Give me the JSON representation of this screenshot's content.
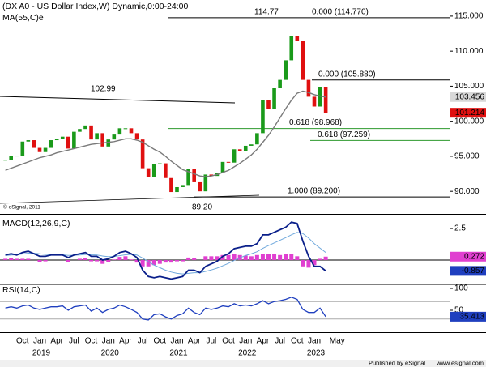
{
  "chart_data": [
    {
      "type": "candlestick",
      "title": "(DX A0 - US Dollar Index,W) Dynamic,0:00-24:00",
      "credit": "© eSignal, 2011",
      "x": [
        "2018-07",
        "2018-08",
        "2018-09",
        "2018-10",
        "2018-11",
        "2018-12",
        "2019-01",
        "2019-02",
        "2019-03",
        "2019-04",
        "2019-05",
        "2019-06",
        "2019-07",
        "2019-08",
        "2019-09",
        "2019-10",
        "2019-11",
        "2019-12",
        "2020-01",
        "2020-02",
        "2020-03",
        "2020-04",
        "2020-05",
        "2020-06",
        "2020-07",
        "2020-08",
        "2020-09",
        "2020-10",
        "2020-11",
        "2020-12",
        "2021-01",
        "2021-02",
        "2021-03",
        "2021-04",
        "2021-05",
        "2021-06",
        "2021-07",
        "2021-08",
        "2021-09",
        "2021-10",
        "2021-11",
        "2021-12",
        "2022-01",
        "2022-02",
        "2022-03",
        "2022-04",
        "2022-05",
        "2022-06",
        "2022-07",
        "2022-08",
        "2022-09",
        "2022-10",
        "2022-11",
        "2022-12",
        "2023-01",
        "2023-02",
        "2023-03"
      ],
      "values": [
        94.5,
        95.1,
        95.1,
        97.1,
        97.3,
        96.2,
        95.6,
        96.2,
        97.3,
        97.5,
        97.8,
        96.1,
        98.5,
        98.9,
        99.4,
        97.4,
        98.3,
        96.4,
        97.4,
        98.1,
        99.0,
        99.0,
        98.3,
        97.4,
        93.3,
        92.1,
        93.9,
        94.0,
        91.9,
        89.9,
        90.6,
        90.9,
        93.2,
        91.3,
        90.0,
        92.4,
        92.2,
        92.6,
        94.2,
        94.1,
        96.0,
        95.7,
        96.5,
        96.7,
        98.3,
        103.0,
        101.8,
        104.7,
        105.9,
        108.7,
        112.1,
        111.5,
        105.9,
        103.5,
        102.1,
        104.9,
        101.214
      ],
      "up_color": "#1a9a1a",
      "down_color": "#e01010",
      "last_color": "#e01010",
      "overlays": [
        {
          "name": "MA(55,C)e",
          "color": "#7a7a7a",
          "values": [
            93.0,
            93.3,
            93.6,
            93.9,
            94.2,
            94.5,
            94.8,
            95.0,
            95.2,
            95.5,
            95.7,
            95.9,
            96.1,
            96.3,
            96.5,
            96.7,
            96.8,
            96.9,
            97.0,
            97.1,
            97.3,
            97.5,
            97.5,
            97.3,
            97.0,
            96.5,
            96.0,
            95.6,
            95.0,
            94.3,
            93.7,
            93.1,
            92.8,
            92.5,
            92.2,
            92.1,
            92.2,
            92.4,
            92.7,
            93.0,
            93.5,
            94.0,
            94.6,
            95.2,
            96.0,
            97.0,
            98.0,
            99.2,
            100.5,
            101.8,
            103.0,
            104.0,
            104.3,
            104.1,
            103.8,
            103.6,
            103.456
          ]
        }
      ],
      "ylim": [
        86.9,
        117.3
      ],
      "yticks": [
        {
          "value": 90,
          "label": "90.000"
        },
        {
          "value": 95,
          "label": "95.000"
        },
        {
          "value": 100,
          "label": "100.000"
        },
        {
          "value": 105,
          "label": "105.000"
        },
        {
          "value": 110,
          "label": "110.000"
        },
        {
          "value": 115,
          "label": "115.000"
        }
      ],
      "xticks": [
        {
          "value": "2018-10",
          "label": "Oct"
        },
        {
          "value": "2019-01",
          "label": "Jan"
        },
        {
          "value": "2019-04",
          "label": "Apr"
        },
        {
          "value": "2019-07",
          "label": "Jul"
        },
        {
          "value": "2019-10",
          "label": "Oct"
        },
        {
          "value": "2020-01",
          "label": "Jan"
        },
        {
          "value": "2020-04",
          "label": "Apr"
        },
        {
          "value": "2020-07",
          "label": "Jul"
        },
        {
          "value": "2020-10",
          "label": "Oct"
        },
        {
          "value": "2021-01",
          "label": "Jan"
        },
        {
          "value": "2021-04",
          "label": "Apr"
        },
        {
          "value": "2021-07",
          "label": "Jul"
        },
        {
          "value": "2021-10",
          "label": "Oct"
        },
        {
          "value": "2022-01",
          "label": "Jan"
        },
        {
          "value": "2022-04",
          "label": "Apr"
        },
        {
          "value": "2022-07",
          "label": "Jul"
        },
        {
          "value": "2022-10",
          "label": "Oct"
        },
        {
          "value": "2023-01",
          "label": "Jan"
        },
        {
          "value": "2023-05",
          "label": "May"
        }
      ],
      "year_ticks": [
        {
          "value": "2019-01",
          "label": "2019"
        },
        {
          "value": "2020-01",
          "label": "2020"
        },
        {
          "value": "2021-01",
          "label": "2021"
        },
        {
          "value": "2022-01",
          "label": "2022"
        },
        {
          "value": "2023-01",
          "label": "2023"
        }
      ],
      "annotations": [
        {
          "text": "102.99",
          "value": 102.99
        },
        {
          "text": "89.20",
          "value": 89.2
        },
        {
          "text": "114.77",
          "value": 114.77
        }
      ],
      "levels": [
        {
          "label": "0.000 (114.770)",
          "value": 114.77,
          "color": "#000000"
        },
        {
          "label": "0.000 (105.880)",
          "value": 105.88,
          "color": "#000000"
        },
        {
          "label": "0.618 (98.968)",
          "value": 98.968,
          "color": "#2e9a2e"
        },
        {
          "label": "0.618 (97.259)",
          "value": 97.259,
          "color": "#2e9a2e"
        },
        {
          "label": "1.000 (89.200)",
          "value": 89.2,
          "color": "#000000"
        }
      ]
    },
    {
      "type": "macd",
      "title": "MACD(12,26,9,C)",
      "ylim": [
        -1.86,
        3.53
      ],
      "yticks": [
        2.5
      ],
      "ref_lines": [
        0
      ],
      "macd": {
        "color": "#0a1f8a",
        "badge": "#1f3fbf",
        "values": [
          0.4,
          0.5,
          0.4,
          0.6,
          0.7,
          0.5,
          0.3,
          0.3,
          0.4,
          0.4,
          0.4,
          0.2,
          0.4,
          0.5,
          0.6,
          0.3,
          0.3,
          0.0,
          0.1,
          0.3,
          0.6,
          0.7,
          0.5,
          0.2,
          -0.8,
          -1.3,
          -1.4,
          -1.3,
          -1.4,
          -1.5,
          -1.4,
          -1.3,
          -0.8,
          -0.8,
          -1.0,
          -0.5,
          -0.3,
          -0.1,
          0.3,
          0.5,
          0.9,
          1.0,
          1.1,
          1.1,
          1.3,
          2.0,
          2.0,
          2.2,
          2.4,
          2.6,
          3.0,
          2.9,
          1.5,
          0.3,
          -0.5,
          -0.5,
          -0.857
        ]
      },
      "signal": {
        "color": "#6fa8dc",
        "values": [
          0.35,
          0.4,
          0.42,
          0.48,
          0.55,
          0.55,
          0.5,
          0.45,
          0.43,
          0.42,
          0.42,
          0.37,
          0.38,
          0.4,
          0.45,
          0.42,
          0.4,
          0.32,
          0.27,
          0.28,
          0.35,
          0.42,
          0.45,
          0.4,
          0.16,
          -0.13,
          -0.4,
          -0.6,
          -0.8,
          -0.95,
          -1.05,
          -1.1,
          -1.05,
          -1.0,
          -1.0,
          -0.9,
          -0.78,
          -0.64,
          -0.45,
          -0.26,
          -0.03,
          0.18,
          0.36,
          0.5,
          0.66,
          0.93,
          1.15,
          1.36,
          1.57,
          1.78,
          2.0,
          2.2,
          2.1,
          1.75,
          1.3,
          0.95,
          0.6
        ]
      },
      "histogram": {
        "color": "#e040d0",
        "values": [
          0.1,
          0.15,
          0.1,
          0.1,
          0.1,
          0,
          -0.15,
          -0.1,
          0,
          0,
          0,
          -0.15,
          0,
          0.1,
          0.15,
          -0.1,
          -0.1,
          -0.3,
          -0.15,
          0.05,
          0.25,
          0.3,
          0.05,
          -0.2,
          -0.5,
          -0.5,
          -0.4,
          -0.3,
          -0.2,
          -0.2,
          -0.1,
          -0.1,
          0.2,
          0.15,
          0,
          0.3,
          0.3,
          0.3,
          0.4,
          0.4,
          0.5,
          0.4,
          0.35,
          0.3,
          0.4,
          0.5,
          0.45,
          0.5,
          0.4,
          0.5,
          0.5,
          0.3,
          -0.5,
          -0.6,
          -0.4,
          0.1,
          0.272
        ]
      }
    },
    {
      "type": "rsi",
      "title": "RSI(14,C)",
      "ylim": [
        0,
        107.4
      ],
      "yticks": [
        100,
        50
      ],
      "ref_lines": [
        70,
        30
      ],
      "color": "#1f3fbf",
      "values": [
        55,
        58,
        55,
        60,
        62,
        55,
        52,
        55,
        58,
        58,
        60,
        50,
        58,
        60,
        62,
        48,
        55,
        45,
        52,
        55,
        62,
        58,
        52,
        45,
        30,
        28,
        40,
        42,
        35,
        30,
        38,
        42,
        55,
        45,
        40,
        55,
        52,
        55,
        60,
        58,
        65,
        60,
        62,
        60,
        65,
        72,
        65,
        70,
        72,
        75,
        80,
        75,
        52,
        45,
        45,
        55,
        35.413
      ]
    }
  ],
  "footer": {
    "publisher": "Published by eSignal",
    "url": "www.esignal.com"
  }
}
